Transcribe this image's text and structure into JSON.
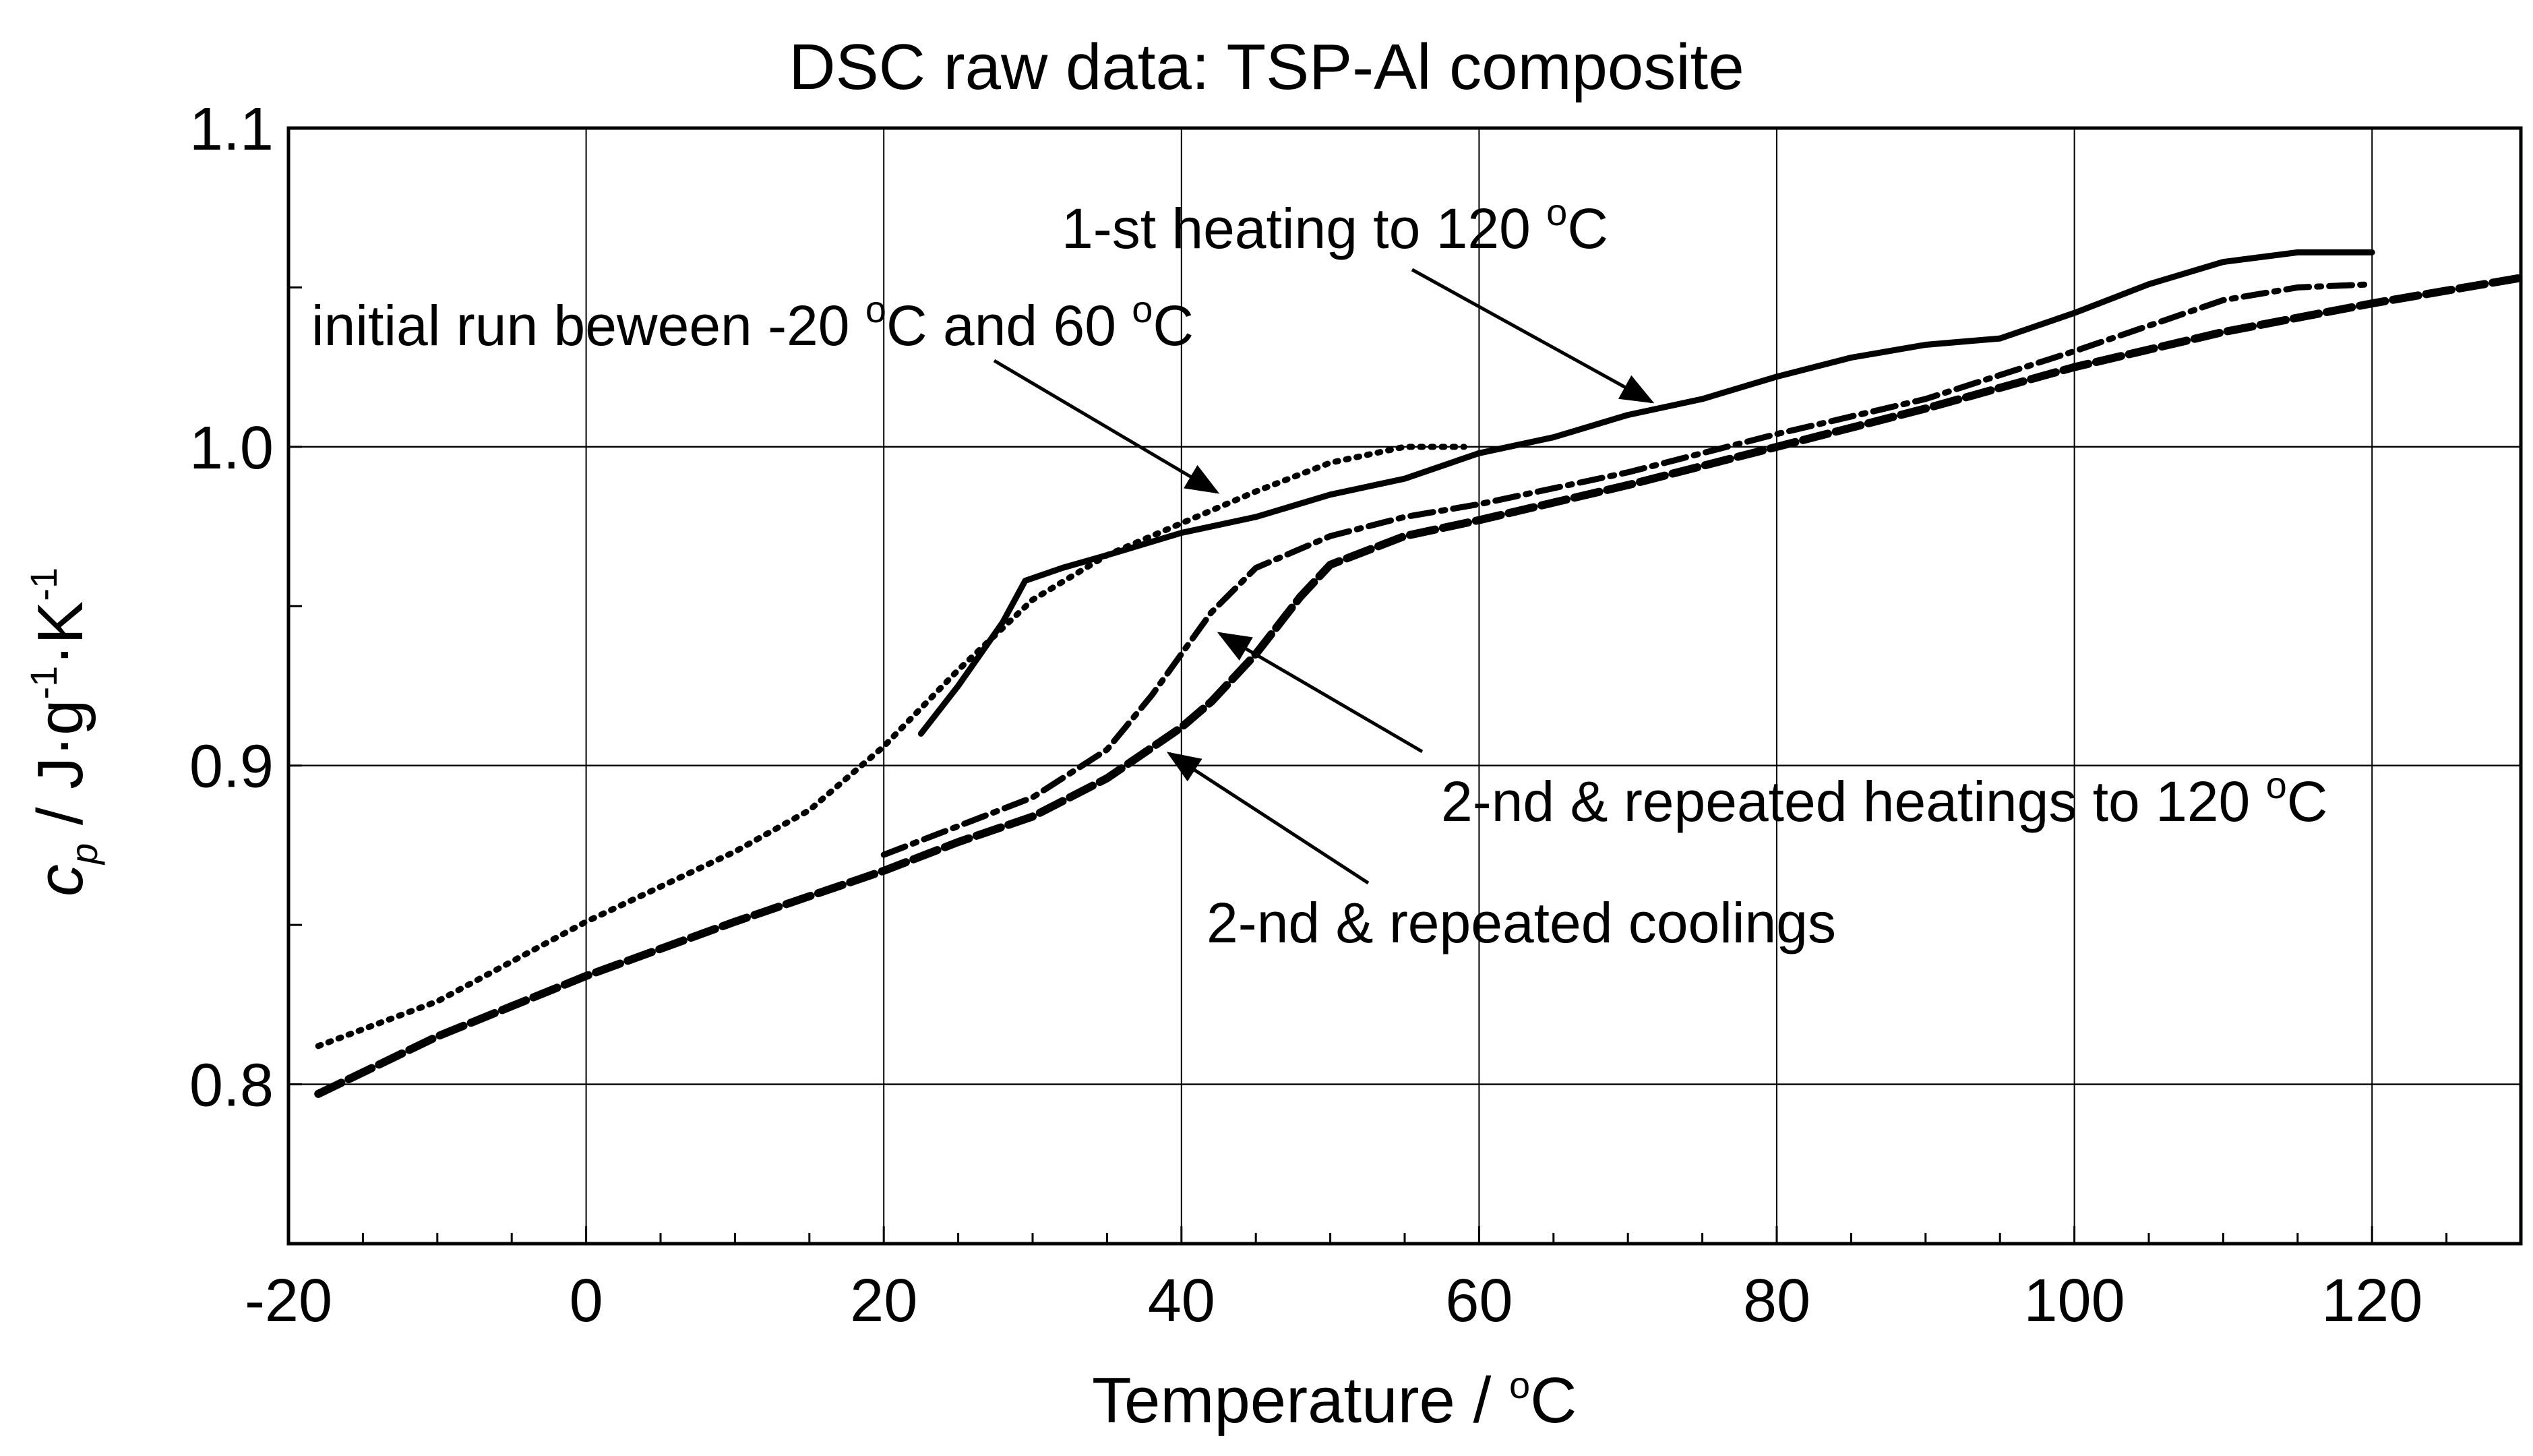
{
  "chart_data": {
    "type": "line",
    "title": "DSC raw data: TSP-Al composite",
    "xlabel": "Temperature / °C",
    "ylabel": "c_p / J·g⁻¹·K⁻¹",
    "xlim": [
      -20,
      130
    ],
    "ylim": [
      0.75,
      1.1
    ],
    "grid": true,
    "x_ticks": [
      -20,
      0,
      20,
      40,
      60,
      80,
      100,
      120
    ],
    "x_tick_labels": [
      "-20",
      "0",
      "20",
      "40",
      "60",
      "80",
      "100",
      "120"
    ],
    "y_ticks": [
      0.8,
      0.9,
      1.0,
      1.1
    ],
    "y_tick_labels": [
      "0.8",
      "0.9",
      "1.0",
      "1.1"
    ],
    "series": [
      {
        "name": "initial run between -20 °C and 60 °C",
        "style": "dotted",
        "points": [
          [
            -18,
            0.812
          ],
          [
            -10,
            0.826
          ],
          [
            0,
            0.851
          ],
          [
            10,
            0.873
          ],
          [
            15,
            0.886
          ],
          [
            20,
            0.906
          ],
          [
            25,
            0.93
          ],
          [
            30,
            0.952
          ],
          [
            35,
            0.966
          ],
          [
            40,
            0.976
          ],
          [
            45,
            0.986
          ],
          [
            50,
            0.995
          ],
          [
            55,
            1.0
          ],
          [
            59,
            1.0
          ]
        ]
      },
      {
        "name": "1-st heating to 120 °C",
        "style": "solid",
        "points": [
          [
            22.5,
            0.91
          ],
          [
            25,
            0.925
          ],
          [
            28,
            0.945
          ],
          [
            29.5,
            0.958
          ],
          [
            32,
            0.962
          ],
          [
            35,
            0.966
          ],
          [
            40,
            0.973
          ],
          [
            45,
            0.978
          ],
          [
            50,
            0.985
          ],
          [
            55,
            0.99
          ],
          [
            60,
            0.998
          ],
          [
            65,
            1.003
          ],
          [
            70,
            1.01
          ],
          [
            75,
            1.015
          ],
          [
            80,
            1.022
          ],
          [
            85,
            1.028
          ],
          [
            90,
            1.032
          ],
          [
            95,
            1.034
          ],
          [
            100,
            1.042
          ],
          [
            105,
            1.051
          ],
          [
            110,
            1.058
          ],
          [
            115,
            1.061
          ],
          [
            120,
            1.061
          ]
        ]
      },
      {
        "name": "2-nd & repeated heatings to 120 °C",
        "style": "dash-dot",
        "points": [
          [
            20,
            0.872
          ],
          [
            25,
            0.881
          ],
          [
            30,
            0.89
          ],
          [
            35,
            0.905
          ],
          [
            38,
            0.922
          ],
          [
            42,
            0.948
          ],
          [
            45,
            0.962
          ],
          [
            50,
            0.972
          ],
          [
            55,
            0.978
          ],
          [
            60,
            0.982
          ],
          [
            70,
            0.992
          ],
          [
            80,
            1.004
          ],
          [
            90,
            1.015
          ],
          [
            100,
            1.03
          ],
          [
            105,
            1.038
          ],
          [
            110,
            1.046
          ],
          [
            115,
            1.05
          ],
          [
            120,
            1.051
          ]
        ]
      },
      {
        "name": "2-nd & repeated coolings",
        "style": "dashed",
        "points": [
          [
            -18,
            0.797
          ],
          [
            -10,
            0.815
          ],
          [
            0,
            0.834
          ],
          [
            10,
            0.851
          ],
          [
            20,
            0.867
          ],
          [
            25,
            0.876
          ],
          [
            30,
            0.884
          ],
          [
            35,
            0.896
          ],
          [
            40,
            0.912
          ],
          [
            42,
            0.92
          ],
          [
            45,
            0.935
          ],
          [
            48,
            0.953
          ],
          [
            50,
            0.963
          ],
          [
            55,
            0.972
          ],
          [
            60,
            0.977
          ],
          [
            70,
            0.988
          ],
          [
            80,
            1.0
          ],
          [
            90,
            1.012
          ],
          [
            100,
            1.025
          ],
          [
            110,
            1.036
          ],
          [
            120,
            1.045
          ],
          [
            130,
            1.053
          ]
        ]
      }
    ],
    "annotations": [
      {
        "text_main": "1-st heating to 120 ",
        "sup": "o",
        "unit": "C"
      },
      {
        "text_main": "initial run beween -20 ",
        "sup": "o",
        "text_mid": "C and 60 ",
        "sup2": "o",
        "unit": "C"
      },
      {
        "text_main": "2-nd & repeated heatings to 120 ",
        "sup": "o",
        "unit": "C"
      },
      {
        "text_main": "2-nd & repeated coolings"
      }
    ],
    "axis_titles": {
      "x_main": "Temperature   / ",
      "x_sup": "o",
      "x_unit": "C",
      "y_sym": "c",
      "y_sub": "p",
      "y_sep": "  /   J·g",
      "y_exp1": "-1",
      "y_mid": "·K",
      "y_exp2": "-1"
    }
  }
}
